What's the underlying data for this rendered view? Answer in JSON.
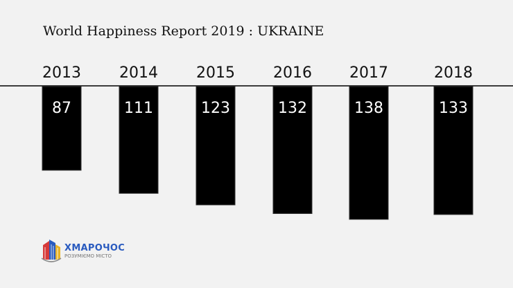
{
  "chart_data": {
    "type": "bar",
    "title": "World Happiness Report 2019 : UKRAINE",
    "categories": [
      "2013",
      "2014",
      "2015",
      "2016",
      "2017",
      "2018"
    ],
    "values": [
      87,
      111,
      123,
      132,
      138,
      133
    ],
    "orientation": "downward-from-top-axis",
    "colors": {
      "bar": "#000000",
      "bar_border": "#333333",
      "label": "#ffffff",
      "axis": "#000000",
      "background": "#f2f2f2"
    }
  },
  "logo": {
    "name": "ХМАРОЧОС",
    "tagline": "РОЗУМІЄМО МІСТО",
    "icon": "skyscraper-logo-icon"
  }
}
